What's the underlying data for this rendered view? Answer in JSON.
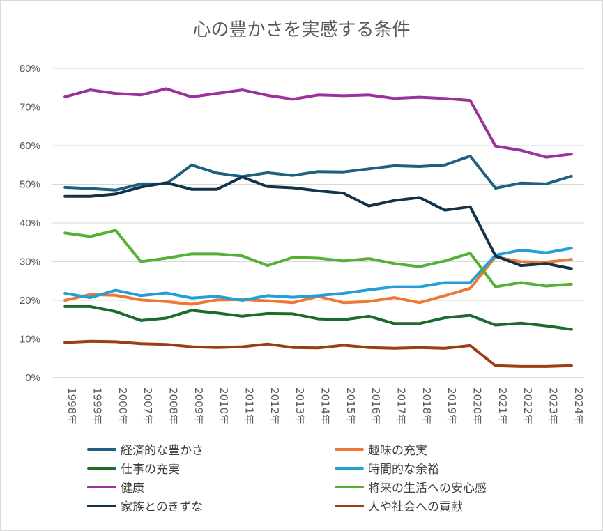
{
  "chart_data": {
    "type": "line",
    "title": "心の豊かさを実感する条件",
    "categories": [
      "1998年",
      "1999年",
      "2000年",
      "2007年",
      "2008年",
      "2009年",
      "2010年",
      "2011年",
      "2012年",
      "2013年",
      "2014年",
      "2015年",
      "2016年",
      "2017年",
      "2018年",
      "2019年",
      "2020年",
      "2021年",
      "2022年",
      "2023年",
      "2024年"
    ],
    "ylim": [
      0,
      80
    ],
    "yticks": [
      "0%",
      "10%",
      "20%",
      "30%",
      "40%",
      "50%",
      "60%",
      "70%",
      "80%"
    ],
    "grid": true,
    "legend_position": "bottom",
    "series": [
      {
        "name": "経済的な豊かさ",
        "color": "#1f5f7f",
        "values": [
          49.2,
          48.9,
          48.5,
          50.1,
          50.1,
          55.0,
          52.9,
          52.0,
          53.0,
          52.3,
          53.3,
          53.2,
          54.0,
          54.8,
          54.6,
          55.0,
          57.3,
          49.0,
          50.3,
          50.1,
          52.1
        ]
      },
      {
        "name": "趣味の充実",
        "color": "#ee7733",
        "values": [
          20.0,
          21.5,
          21.3,
          20.1,
          19.7,
          19.0,
          20.1,
          20.2,
          19.9,
          19.4,
          21.0,
          19.4,
          19.7,
          20.7,
          19.4,
          21.2,
          23.1,
          31.2,
          30.0,
          29.9,
          30.6
        ]
      },
      {
        "name": "仕事の充実",
        "color": "#1c6b2a",
        "values": [
          18.4,
          18.4,
          17.1,
          14.8,
          15.4,
          17.4,
          16.7,
          15.9,
          16.6,
          16.5,
          15.2,
          15.0,
          15.9,
          14.0,
          14.0,
          15.5,
          16.1,
          13.6,
          14.1,
          13.4,
          12.5
        ]
      },
      {
        "name": "時間的な余裕",
        "color": "#22a0d6",
        "values": [
          21.8,
          20.7,
          22.6,
          21.2,
          21.9,
          20.6,
          21.0,
          20.0,
          21.2,
          20.8,
          21.2,
          21.8,
          22.7,
          23.5,
          23.5,
          24.6,
          24.6,
          31.7,
          33.0,
          32.3,
          33.5
        ]
      },
      {
        "name": "健康",
        "color": "#9b319b",
        "values": [
          72.6,
          74.4,
          73.5,
          73.1,
          74.7,
          72.6,
          73.5,
          74.4,
          73.0,
          72.0,
          73.1,
          72.9,
          73.1,
          72.2,
          72.5,
          72.2,
          71.7,
          59.9,
          58.8,
          57.0,
          57.8
        ]
      },
      {
        "name": "将来の生活への安心感",
        "color": "#55b035",
        "values": [
          37.4,
          36.5,
          38.1,
          30.0,
          30.9,
          32.0,
          32.0,
          31.5,
          29.0,
          31.1,
          30.9,
          30.2,
          30.8,
          29.5,
          28.7,
          30.2,
          32.2,
          23.5,
          24.6,
          23.7,
          24.2
        ]
      },
      {
        "name": "家族とのきずな",
        "color": "#12334a",
        "values": [
          46.9,
          46.9,
          47.5,
          49.3,
          50.4,
          48.7,
          48.7,
          51.9,
          49.4,
          49.1,
          48.3,
          47.7,
          44.4,
          45.8,
          46.6,
          43.3,
          44.2,
          31.5,
          29.0,
          29.5,
          28.2
        ]
      },
      {
        "name": "人や社会への貢献",
        "color": "#9a3e14",
        "values": [
          9.1,
          9.4,
          9.3,
          8.8,
          8.6,
          8.0,
          7.8,
          8.0,
          8.7,
          7.8,
          7.7,
          8.4,
          7.8,
          7.6,
          7.8,
          7.6,
          8.3,
          3.1,
          2.9,
          2.9,
          3.1
        ]
      }
    ]
  }
}
